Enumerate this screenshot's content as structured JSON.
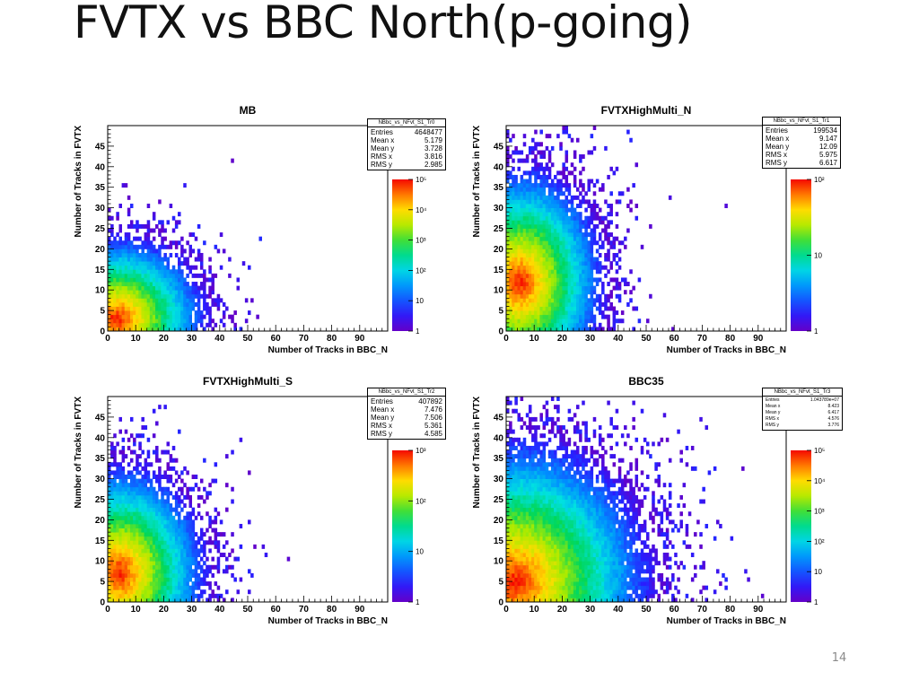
{
  "slide": {
    "title": "FVTX vs BBC North(p-going)",
    "page_number": "14"
  },
  "chart_data": [
    {
      "type": "heatmap",
      "title": "MB",
      "xlabel": "Number of Tracks in BBC_N",
      "ylabel": "Number of Tracks in FVTX",
      "xlim": [
        0,
        100
      ],
      "ylim": [
        0,
        50
      ],
      "x_ticks": [
        "0",
        "10",
        "20",
        "30",
        "40",
        "50",
        "60",
        "70",
        "80",
        "90"
      ],
      "y_ticks": [
        "0",
        "5",
        "10",
        "15",
        "20",
        "25",
        "30",
        "35",
        "40",
        "45"
      ],
      "z_log": true,
      "z_ticks": [
        "1",
        "10",
        "10²",
        "10³",
        "10⁴",
        "10⁵"
      ],
      "stats": {
        "name": "NBbc_vs_NFvt_S1_Tr0",
        "rows": [
          {
            "label": "Entries",
            "value": "4648477"
          },
          {
            "label": "Mean x",
            "value": "5.179"
          },
          {
            "label": "Mean y",
            "value": "3.728"
          },
          {
            "label": "RMS x",
            "value": "3.816"
          },
          {
            "label": "RMS y",
            "value": "2.985"
          }
        ]
      }
    },
    {
      "type": "heatmap",
      "title": "FVTXHighMulti_N",
      "xlabel": "Number of Tracks in BBC_N",
      "ylabel": "Number of Tracks in FVTX",
      "xlim": [
        0,
        100
      ],
      "ylim": [
        0,
        50
      ],
      "x_ticks": [
        "0",
        "10",
        "20",
        "30",
        "40",
        "50",
        "60",
        "70",
        "80",
        "90"
      ],
      "y_ticks": [
        "0",
        "5",
        "10",
        "15",
        "20",
        "25",
        "30",
        "35",
        "40",
        "45"
      ],
      "z_log": true,
      "z_ticks": [
        "1",
        "10",
        "10²"
      ],
      "stats": {
        "name": "NBbc_vs_NFvt_S1_Tr1",
        "rows": [
          {
            "label": "Entries",
            "value": "199534"
          },
          {
            "label": "Mean x",
            "value": "9.147"
          },
          {
            "label": "Mean y",
            "value": "12.09"
          },
          {
            "label": "RMS x",
            "value": "5.975"
          },
          {
            "label": "RMS y",
            "value": "6.617"
          }
        ]
      }
    },
    {
      "type": "heatmap",
      "title": "FVTXHighMulti_S",
      "xlabel": "Number of Tracks in BBC_N",
      "ylabel": "Number of Tracks in FVTX",
      "xlim": [
        0,
        100
      ],
      "ylim": [
        0,
        50
      ],
      "x_ticks": [
        "0",
        "10",
        "20",
        "30",
        "40",
        "50",
        "60",
        "70",
        "80",
        "90"
      ],
      "y_ticks": [
        "0",
        "5",
        "10",
        "15",
        "20",
        "25",
        "30",
        "35",
        "40",
        "45"
      ],
      "z_log": true,
      "z_ticks": [
        "1",
        "10",
        "10²",
        "10³"
      ],
      "stats": {
        "name": "NBbc_vs_NFvt_S1_Tr2",
        "rows": [
          {
            "label": "Entries",
            "value": "407892"
          },
          {
            "label": "Mean x",
            "value": "7.476"
          },
          {
            "label": "Mean y",
            "value": "7.506"
          },
          {
            "label": "RMS x",
            "value": "5.361"
          },
          {
            "label": "RMS y",
            "value": "4.585"
          }
        ]
      }
    },
    {
      "type": "heatmap",
      "title": "BBC35",
      "xlabel": "Number of Tracks in BBC_N",
      "ylabel": "Number of Tracks in FVTX",
      "xlim": [
        0,
        100
      ],
      "ylim": [
        0,
        50
      ],
      "x_ticks": [
        "0",
        "10",
        "20",
        "30",
        "40",
        "50",
        "60",
        "70",
        "80",
        "90"
      ],
      "y_ticks": [
        "0",
        "5",
        "10",
        "15",
        "20",
        "25",
        "30",
        "35",
        "40",
        "45"
      ],
      "z_log": true,
      "z_ticks": [
        "1",
        "10",
        "10²",
        "10³",
        "10⁴",
        "10⁵"
      ],
      "stats": {
        "name": "NBbc_vs_NFvt_S1_Tr3",
        "rows": [
          {
            "label": "Entries",
            "value": "1.043789e+07"
          },
          {
            "label": "Mean x",
            "value": "8.423"
          },
          {
            "label": "Mean y",
            "value": "6.417"
          },
          {
            "label": "RMS x",
            "value": "4.576"
          },
          {
            "label": "RMS y",
            "value": "3.776"
          }
        ]
      }
    }
  ]
}
